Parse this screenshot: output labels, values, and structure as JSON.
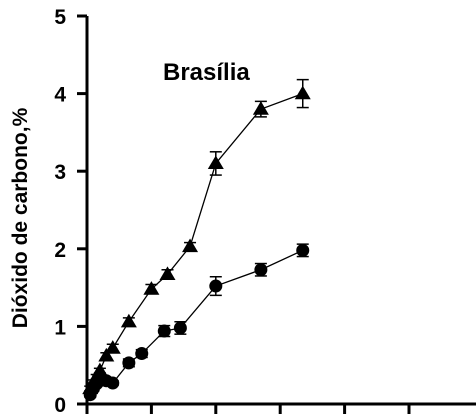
{
  "chart_data": {
    "type": "line",
    "title": "",
    "xlabel": "",
    "ylabel": "Dióxido de carbono,%",
    "annotation": "Brasília",
    "ylim": [
      0,
      5
    ],
    "xlim": [
      0,
      58
    ],
    "y_ticks": [
      0,
      1,
      2,
      3,
      4,
      5
    ],
    "y_tick_labels": [
      "0",
      "1",
      "2",
      "3",
      "4",
      "5"
    ],
    "x_ticks": [
      0,
      10,
      20,
      30,
      40,
      50
    ],
    "grid": false,
    "legend": "none",
    "colors": {
      "line": "#000000",
      "marker": "#000000"
    },
    "series": [
      {
        "marker": "triangle",
        "points": [
          {
            "x": 0.5,
            "y": 0.2,
            "err": 0.03
          },
          {
            "x": 1.0,
            "y": 0.28,
            "err": 0.03
          },
          {
            "x": 1.5,
            "y": 0.35,
            "err": 0.03
          },
          {
            "x": 2.0,
            "y": 0.43,
            "err": 0.03
          },
          {
            "x": 3.0,
            "y": 0.62,
            "err": 0.04
          },
          {
            "x": 4.0,
            "y": 0.72,
            "err": 0.05
          },
          {
            "x": 6.5,
            "y": 1.06,
            "err": 0.05
          },
          {
            "x": 10.0,
            "y": 1.48,
            "err": 0.06
          },
          {
            "x": 12.5,
            "y": 1.67,
            "err": 0.06
          },
          {
            "x": 16.0,
            "y": 2.03,
            "err": 0.05
          },
          {
            "x": 20.0,
            "y": 3.1,
            "err": 0.15
          },
          {
            "x": 27.0,
            "y": 3.8,
            "err": 0.1
          },
          {
            "x": 33.5,
            "y": 4.0,
            "err": 0.18
          }
        ]
      },
      {
        "marker": "circle",
        "points": [
          {
            "x": 0.5,
            "y": 0.12,
            "err": 0.03
          },
          {
            "x": 1.0,
            "y": 0.2,
            "err": 0.03
          },
          {
            "x": 1.5,
            "y": 0.26,
            "err": 0.03
          },
          {
            "x": 2.0,
            "y": 0.31,
            "err": 0.03
          },
          {
            "x": 3.0,
            "y": 0.3,
            "err": 0.03
          },
          {
            "x": 4.0,
            "y": 0.27,
            "err": 0.03
          },
          {
            "x": 6.5,
            "y": 0.53,
            "err": 0.05
          },
          {
            "x": 8.5,
            "y": 0.65,
            "err": 0.05
          },
          {
            "x": 12.0,
            "y": 0.94,
            "err": 0.07
          },
          {
            "x": 14.5,
            "y": 0.98,
            "err": 0.08
          },
          {
            "x": 20.0,
            "y": 1.52,
            "err": 0.12
          },
          {
            "x": 27.0,
            "y": 1.73,
            "err": 0.08
          },
          {
            "x": 33.5,
            "y": 1.98,
            "err": 0.08
          }
        ]
      }
    ]
  }
}
